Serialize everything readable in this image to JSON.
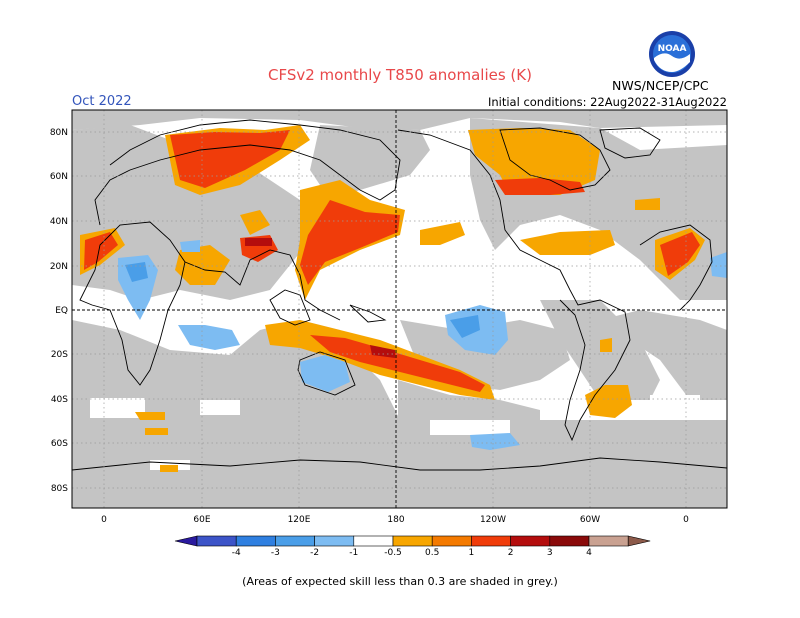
{
  "header": {
    "title": "CFSv2 monthly T850 anomalies (K)",
    "agency": "NWS/NCEP/CPC",
    "logo_text": "NOAA",
    "month": "Oct 2022",
    "initial_conditions": "Initial conditions: 22Aug2022-31Aug2022"
  },
  "axes": {
    "lat_labels": [
      "80N",
      "60N",
      "40N",
      "20N",
      "EQ",
      "20S",
      "40S",
      "60S",
      "80S"
    ],
    "lon_labels": [
      "0",
      "60E",
      "120E",
      "180",
      "120W",
      "60W",
      "0"
    ]
  },
  "colorbar": {
    "labels": [
      "-4",
      "-3",
      "-2",
      "-1",
      "-0.5",
      "0.5",
      "1",
      "2",
      "3",
      "4"
    ],
    "colors": [
      "#2a1a9e",
      "#3c54c8",
      "#2f7fe0",
      "#4a9ee8",
      "#7dbcf2",
      "#ffffff",
      "#f7a600",
      "#f47a00",
      "#f03c0a",
      "#b40d0d",
      "#8a0a0a",
      "#c9a191",
      "#8c5a4a"
    ]
  },
  "colors": {
    "skill_mask": "#c4c4c4",
    "ocean_background": "#ffffff",
    "title": "#e8484a",
    "month": "#3355bb"
  },
  "footnote": "(Areas of expected skill less than 0.3 are shaded in grey.)"
}
